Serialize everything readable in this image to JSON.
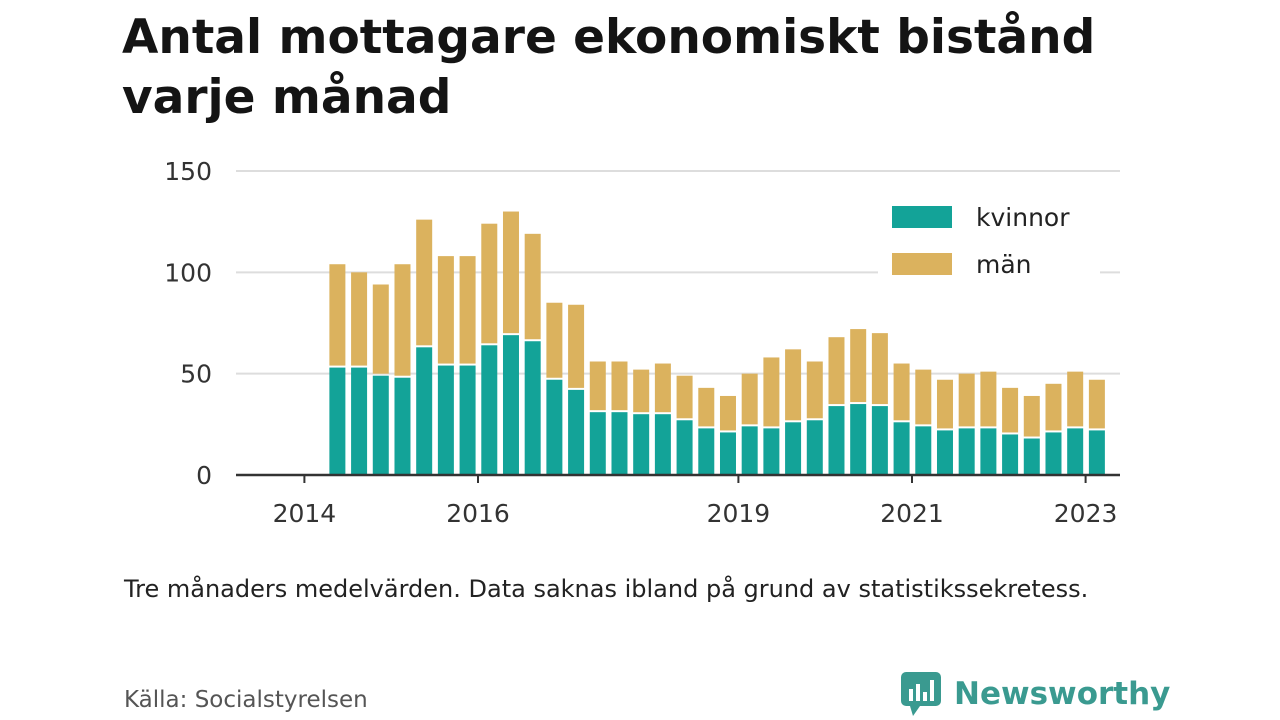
{
  "title": "Antal mottagare ekonomiskt bistånd varje månad",
  "note": "Tre månaders medelvärden. Data saknas ibland på grund av statistikssekretess.",
  "source": "Källa: Socialstyrelsen",
  "brand": {
    "name": "Newsworthy",
    "icon": "newsworthy-logo-icon",
    "color": "#3a9a90"
  },
  "colors": {
    "kvinnor": "#13a398",
    "man": "#dbb25e",
    "grid": "#dddddd",
    "axis": "#333333"
  },
  "chart_data": {
    "type": "bar",
    "stacked": true,
    "ylim": [
      0,
      150
    ],
    "yticks": [
      "0",
      "50",
      "100",
      "150"
    ],
    "xticks": [
      {
        "label": "2014",
        "x": 2014.0
      },
      {
        "label": "2016",
        "x": 2016.0
      },
      {
        "label": "2019",
        "x": 2019.0
      },
      {
        "label": "2021",
        "x": 2021.0
      },
      {
        "label": "2023",
        "x": 2023.0
      }
    ],
    "grid": true,
    "legend_position": "top-right",
    "x": [
      2014.38,
      2014.63,
      2014.88,
      2015.13,
      2015.38,
      2015.63,
      2015.88,
      2016.13,
      2016.38,
      2016.63,
      2016.88,
      2017.13,
      2017.38,
      2017.63,
      2017.88,
      2018.13,
      2018.38,
      2018.63,
      2018.88,
      2019.13,
      2019.38,
      2019.63,
      2019.88,
      2020.13,
      2020.38,
      2020.63,
      2020.88,
      2021.13,
      2021.38,
      2021.63,
      2021.88,
      2022.13,
      2022.38,
      2022.63,
      2022.88,
      2023.13
    ],
    "series": [
      {
        "name": "kvinnor",
        "values": [
          53,
          53,
          49,
          48,
          63,
          54,
          54,
          64,
          69,
          66,
          47,
          42,
          31,
          31,
          30,
          30,
          27,
          23,
          21,
          24,
          23,
          26,
          27,
          34,
          35,
          34,
          26,
          24,
          22,
          23,
          23,
          20,
          18,
          21,
          23,
          22
        ]
      },
      {
        "name": "män",
        "values": [
          51,
          47,
          45,
          56,
          63,
          54,
          54,
          60,
          61,
          53,
          38,
          42,
          25,
          25,
          22,
          25,
          22,
          20,
          18,
          26,
          35,
          36,
          29,
          34,
          37,
          36,
          29,
          28,
          25,
          27,
          28,
          23,
          21,
          24,
          28,
          25
        ]
      }
    ]
  }
}
